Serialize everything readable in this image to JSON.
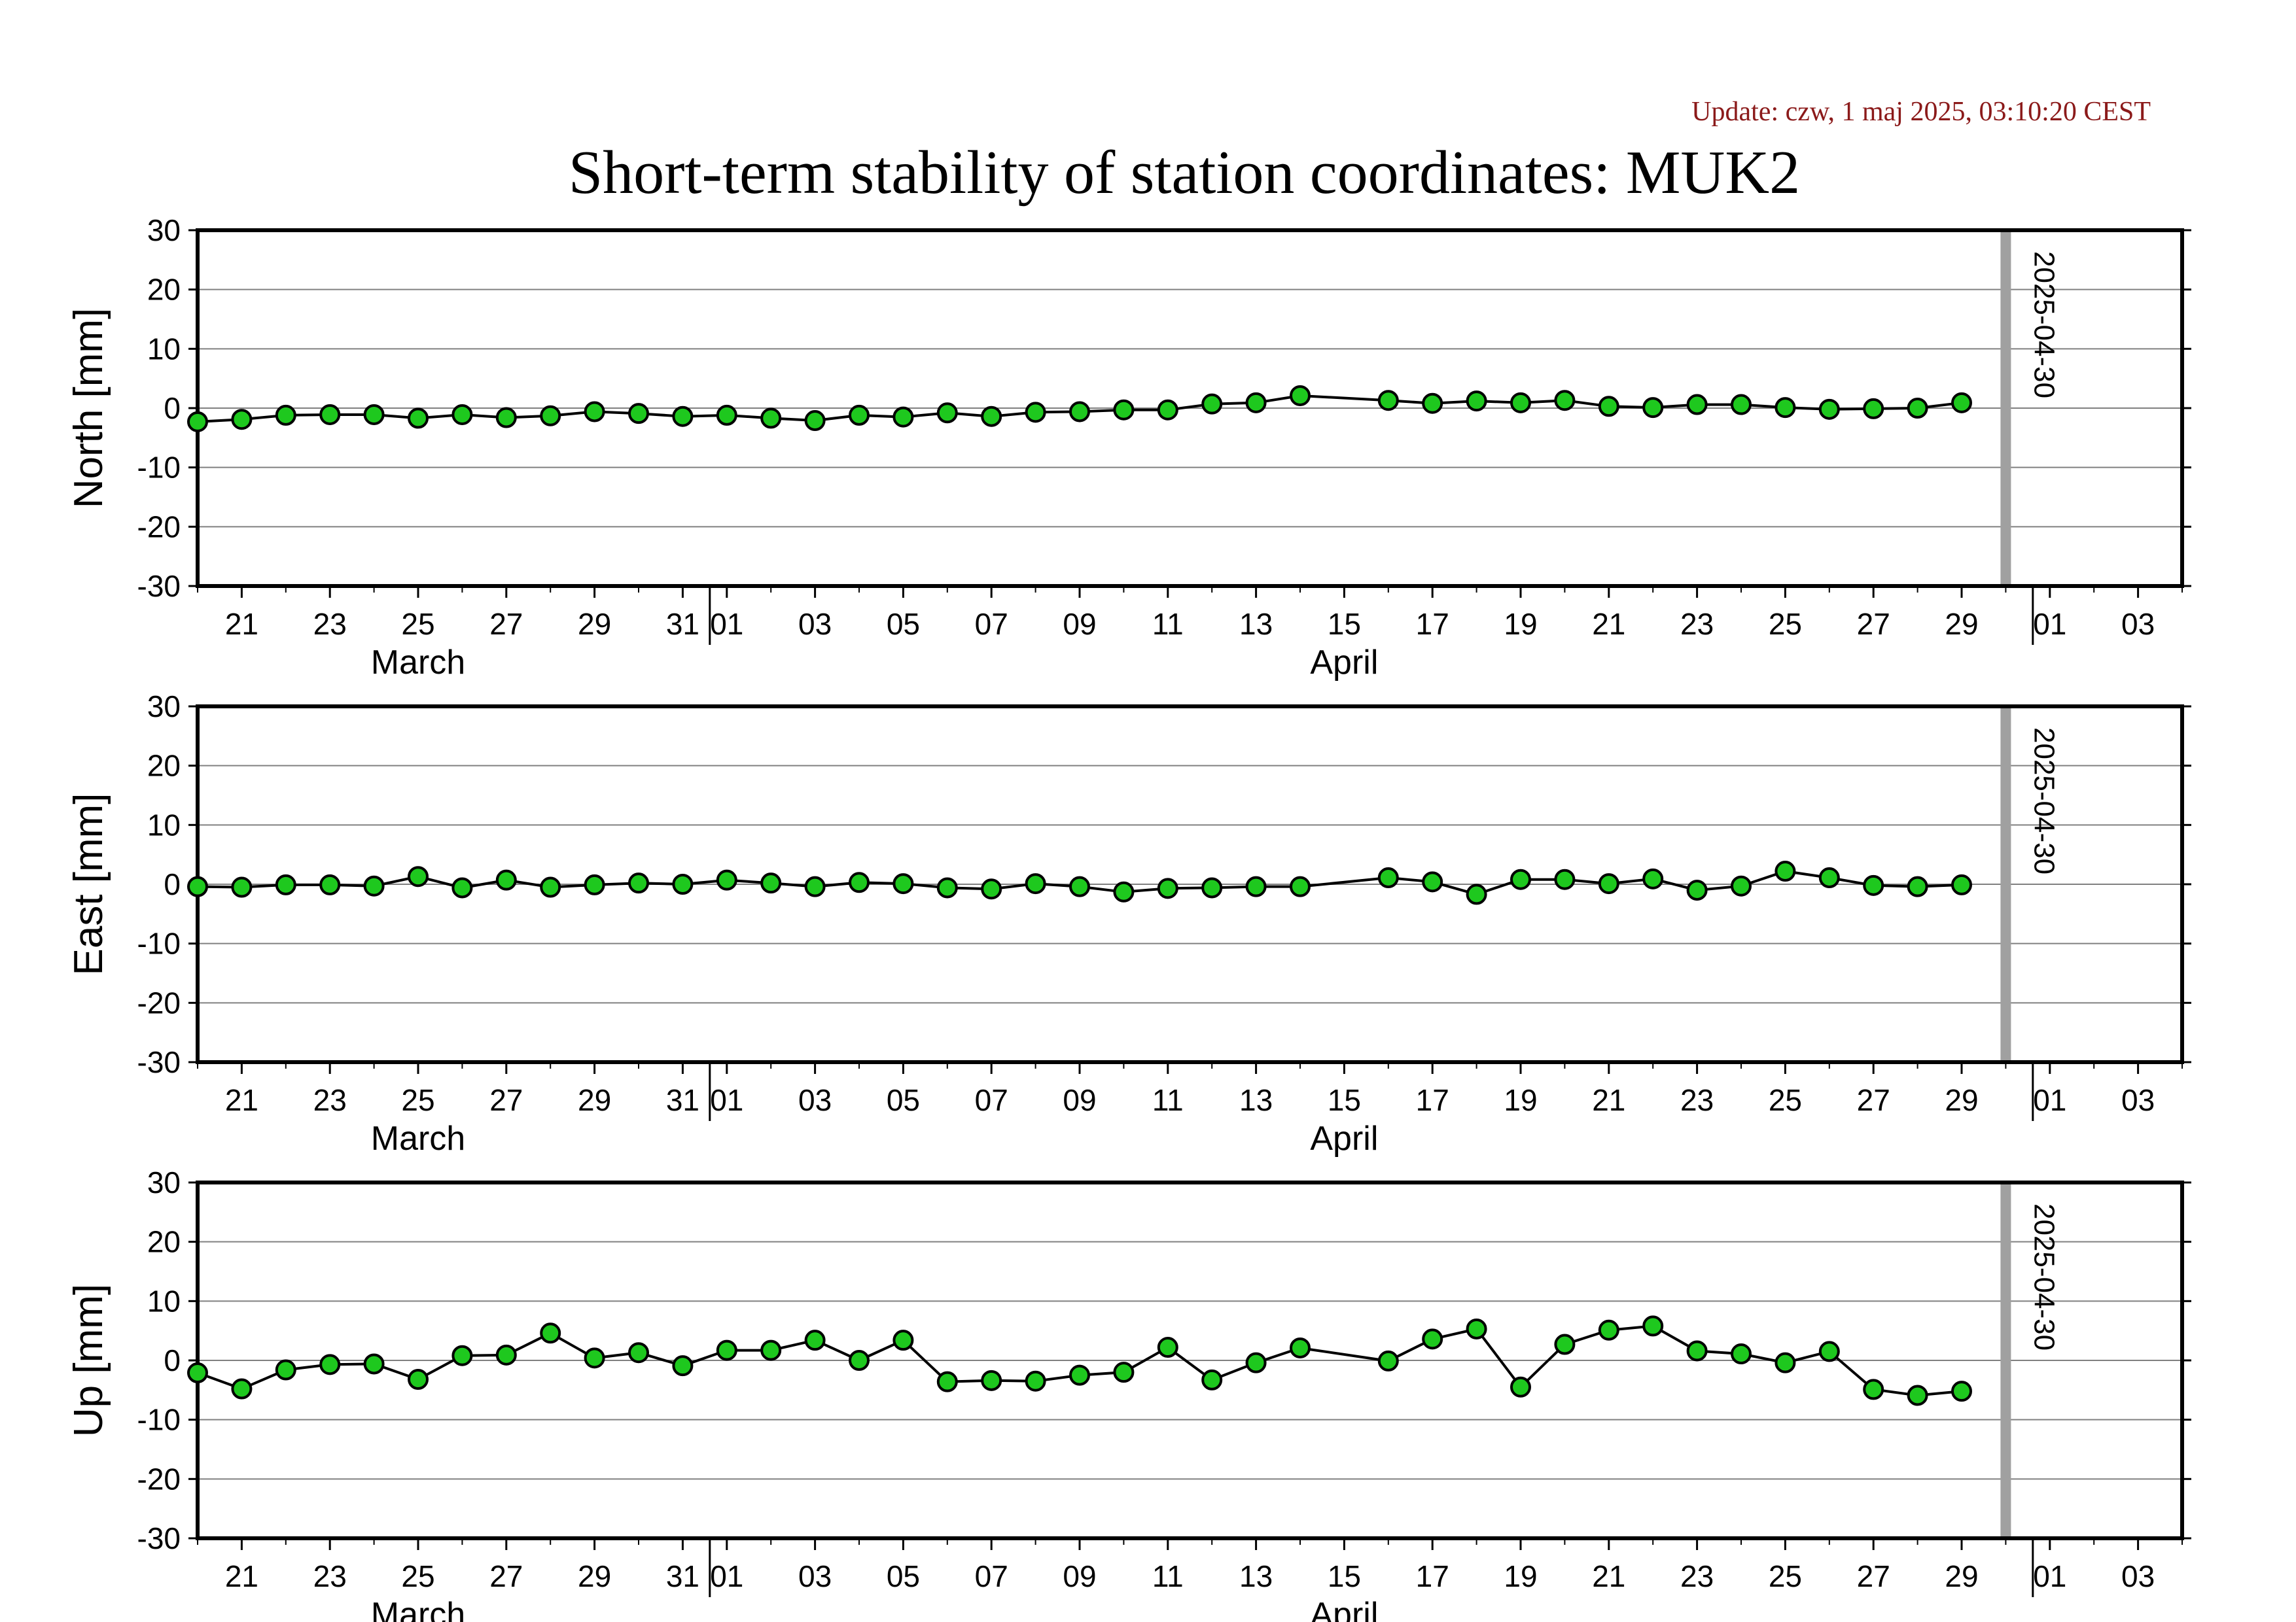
{
  "update_text": "Update: czw, 1 maj 2025, 03:10:20 CEST",
  "title": "Short-term stability of station coordinates: MUK2",
  "chart_data": {
    "type": "line",
    "x_dates": [
      "2025-03-20",
      "2025-03-21",
      "2025-03-22",
      "2025-03-23",
      "2025-03-24",
      "2025-03-25",
      "2025-03-26",
      "2025-03-27",
      "2025-03-28",
      "2025-03-29",
      "2025-03-30",
      "2025-03-31",
      "2025-04-01",
      "2025-04-02",
      "2025-04-03",
      "2025-04-04",
      "2025-04-05",
      "2025-04-06",
      "2025-04-07",
      "2025-04-08",
      "2025-04-09",
      "2025-04-10",
      "2025-04-11",
      "2025-04-12",
      "2025-04-13",
      "2025-04-14",
      "2025-04-16",
      "2025-04-17",
      "2025-04-18",
      "2025-04-19",
      "2025-04-20",
      "2025-04-21",
      "2025-04-22",
      "2025-04-23",
      "2025-04-24",
      "2025-04-25",
      "2025-04-26",
      "2025-04-27",
      "2025-04-28",
      "2025-04-29"
    ],
    "xlim": [
      "2025-03-20",
      "2025-05-04"
    ],
    "x_ticks": [
      "21",
      "23",
      "25",
      "27",
      "29",
      "31",
      "01",
      "03",
      "05",
      "07",
      "09",
      "11",
      "13",
      "15",
      "17",
      "19",
      "21",
      "23",
      "25",
      "27",
      "29",
      "01",
      "03"
    ],
    "x_tick_dates": [
      "2025-03-21",
      "2025-03-23",
      "2025-03-25",
      "2025-03-27",
      "2025-03-29",
      "2025-03-31",
      "2025-04-01",
      "2025-04-03",
      "2025-04-05",
      "2025-04-07",
      "2025-04-09",
      "2025-04-11",
      "2025-04-13",
      "2025-04-15",
      "2025-04-17",
      "2025-04-19",
      "2025-04-21",
      "2025-04-23",
      "2025-04-25",
      "2025-04-27",
      "2025-04-29",
      "2025-05-01",
      "2025-05-03"
    ],
    "month_boundaries": [
      "2025-04-01",
      "2025-05-01"
    ],
    "months": [
      {
        "label": "March",
        "date": "2025-03-25"
      },
      {
        "label": "April",
        "date": "2025-04-15"
      }
    ],
    "marker_line": {
      "date": "2025-04-30",
      "label": "2025-04-30",
      "color": "#a0a0a0"
    },
    "ylim": [
      -30,
      30
    ],
    "y_ticks": [
      30,
      20,
      10,
      0,
      -10,
      -20,
      -30
    ],
    "point_color": "#1ec81e",
    "grid": true,
    "panels": [
      {
        "ylabel": "North [mm]",
        "values": [
          -2.3,
          -1.9,
          -1.2,
          -1.1,
          -1.1,
          -1.7,
          -1.1,
          -1.6,
          -1.3,
          -0.6,
          -0.9,
          -1.4,
          -1.2,
          -1.7,
          -2.1,
          -1.2,
          -1.5,
          -0.8,
          -1.4,
          -0.7,
          -0.6,
          -0.3,
          -0.3,
          0.7,
          0.9,
          2.1,
          1.3,
          0.8,
          1.2,
          0.9,
          1.3,
          0.3,
          0.1,
          0.6,
          0.6,
          0.1,
          -0.2,
          -0.1,
          0.0,
          0.9
        ]
      },
      {
        "ylabel": "East [mm]",
        "values": [
          -0.4,
          -0.5,
          -0.1,
          -0.1,
          -0.3,
          1.3,
          -0.6,
          0.7,
          -0.5,
          -0.1,
          0.2,
          0.0,
          0.7,
          0.2,
          -0.4,
          0.3,
          0.1,
          -0.6,
          -0.8,
          0.1,
          -0.4,
          -1.3,
          -0.7,
          -0.6,
          -0.4,
          -0.4,
          1.1,
          0.4,
          -1.7,
          0.8,
          0.8,
          0.1,
          0.9,
          -1.0,
          -0.3,
          2.2,
          1.1,
          -0.2,
          -0.4,
          -0.1
        ]
      },
      {
        "ylabel": "Up [mm]",
        "values": [
          -2.1,
          -4.8,
          -1.6,
          -0.7,
          -0.6,
          -3.2,
          0.8,
          0.9,
          4.6,
          0.4,
          1.3,
          -0.9,
          1.7,
          1.7,
          3.4,
          0.0,
          3.4,
          -3.6,
          -3.4,
          -3.5,
          -2.5,
          -2.0,
          2.2,
          -3.3,
          -0.4,
          2.1,
          -0.1,
          3.6,
          5.3,
          -4.5,
          2.7,
          5.1,
          5.8,
          1.6,
          1.1,
          -0.4,
          1.5,
          -4.9,
          -5.9,
          -5.2
        ]
      }
    ]
  }
}
